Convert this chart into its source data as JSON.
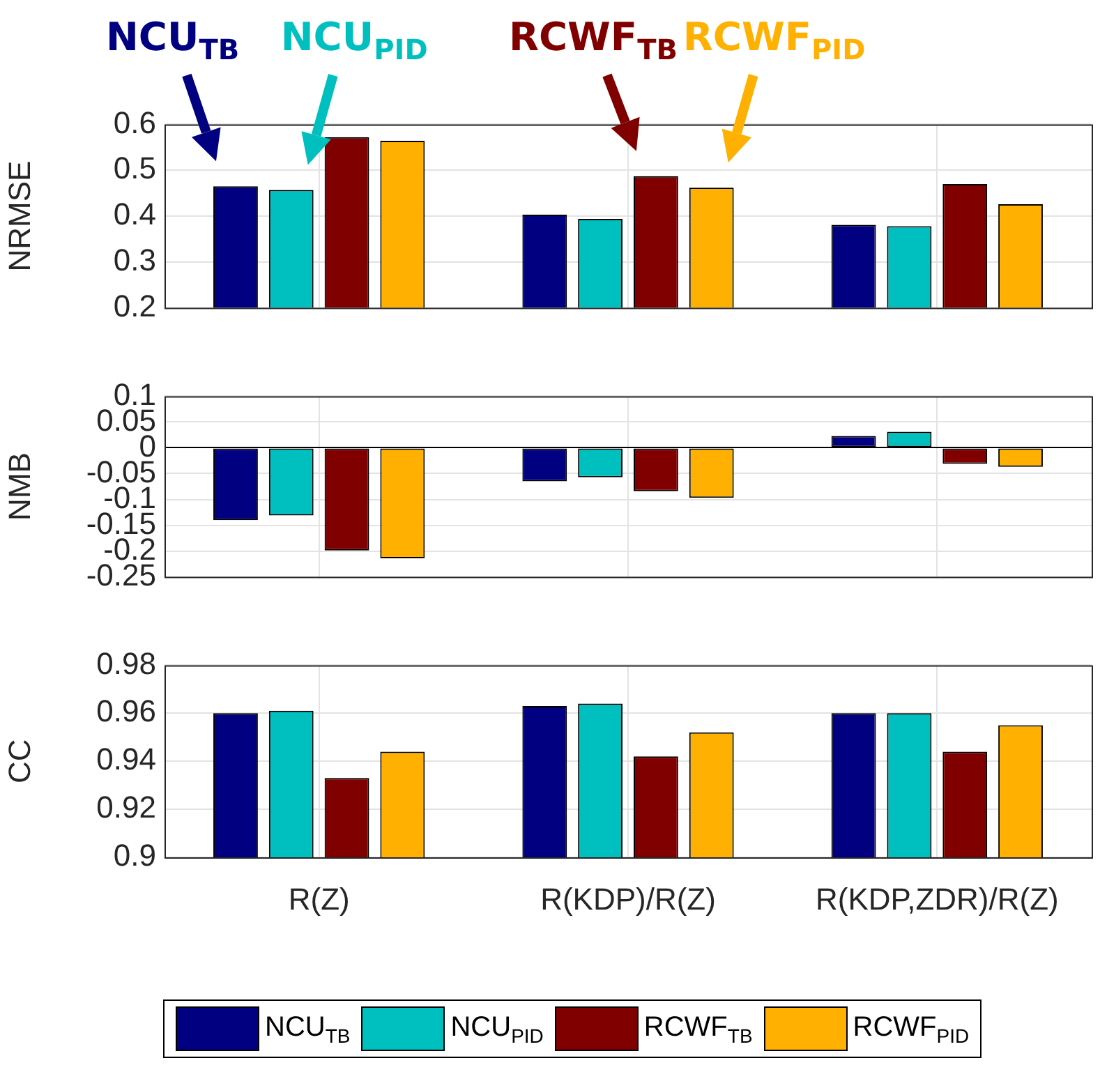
{
  "chart_data": [
    {
      "type": "bar",
      "ylabel": "NRMSE",
      "categories": [
        null,
        null,
        null
      ],
      "series": [
        {
          "name": "NCU$_{TB}$",
          "color": "#000080",
          "values": [
            0.465,
            0.403,
            0.381
          ]
        },
        {
          "name": "NCU$_{PID}$",
          "color": "#00bfbf",
          "values": [
            0.457,
            0.394,
            0.378
          ]
        },
        {
          "name": "RCWF$_{TB}$",
          "color": "#800000",
          "values": [
            0.572,
            0.487,
            0.47
          ]
        },
        {
          "name": "RCWF$_{PID}$",
          "color": "#ffb000",
          "values": [
            0.564,
            0.462,
            0.426
          ]
        }
      ],
      "ylim": [
        0.2,
        0.6
      ],
      "yticks": [
        0.2,
        0.3,
        0.4,
        0.5,
        0.6
      ],
      "grid": true,
      "tick_labels": "y",
      "legend": "top"
    },
    {
      "type": "bar",
      "ylabel": "NMB",
      "categories": [
        null,
        null,
        null
      ],
      "series": [
        {
          "color": "#000080",
          "values": [
            -0.14,
            -0.065,
            0.023
          ]
        },
        {
          "color": "#00bfbf",
          "values": [
            -0.131,
            -0.057,
            0.031
          ]
        },
        {
          "color": "#800000",
          "values": [
            -0.199,
            -0.084,
            -0.031
          ]
        },
        {
          "color": "#ffb000",
          "values": [
            -0.214,
            -0.097,
            -0.037
          ]
        }
      ],
      "ylim": [
        -0.25,
        0.1
      ],
      "yticks": [
        -0.25,
        -0.2,
        -0.15,
        -0.1,
        -0.05,
        0,
        0.05,
        0.1
      ],
      "grid": true,
      "tick_labels": "y"
    },
    {
      "type": "bar",
      "ylabel": "CC",
      "categories": [
        "R(Z)",
        "R(KDP)/R(Z)",
        "R(KDP,ZDR)/R(Z)"
      ],
      "series": [
        {
          "name": "NCU$_{TB}$",
          "color": "#000080",
          "values": [
            0.96,
            0.963,
            0.96
          ]
        },
        {
          "name": "NCU$_{PID}$",
          "color": "#00bfbf",
          "values": [
            0.961,
            0.964,
            0.96
          ]
        },
        {
          "name": "RCWF$_{TB}$",
          "color": "#800000",
          "values": [
            0.933,
            0.942,
            0.944
          ]
        },
        {
          "name": "RCWF$_{PID}$",
          "color": "#ffb000",
          "values": [
            0.944,
            0.952,
            0.955
          ]
        }
      ],
      "ylim": [
        0.9,
        0.98
      ],
      "yticks": [
        0.9,
        0.92,
        0.94,
        0.96,
        0.98
      ],
      "grid": true,
      "legend": "bottom"
    }
  ]
}
